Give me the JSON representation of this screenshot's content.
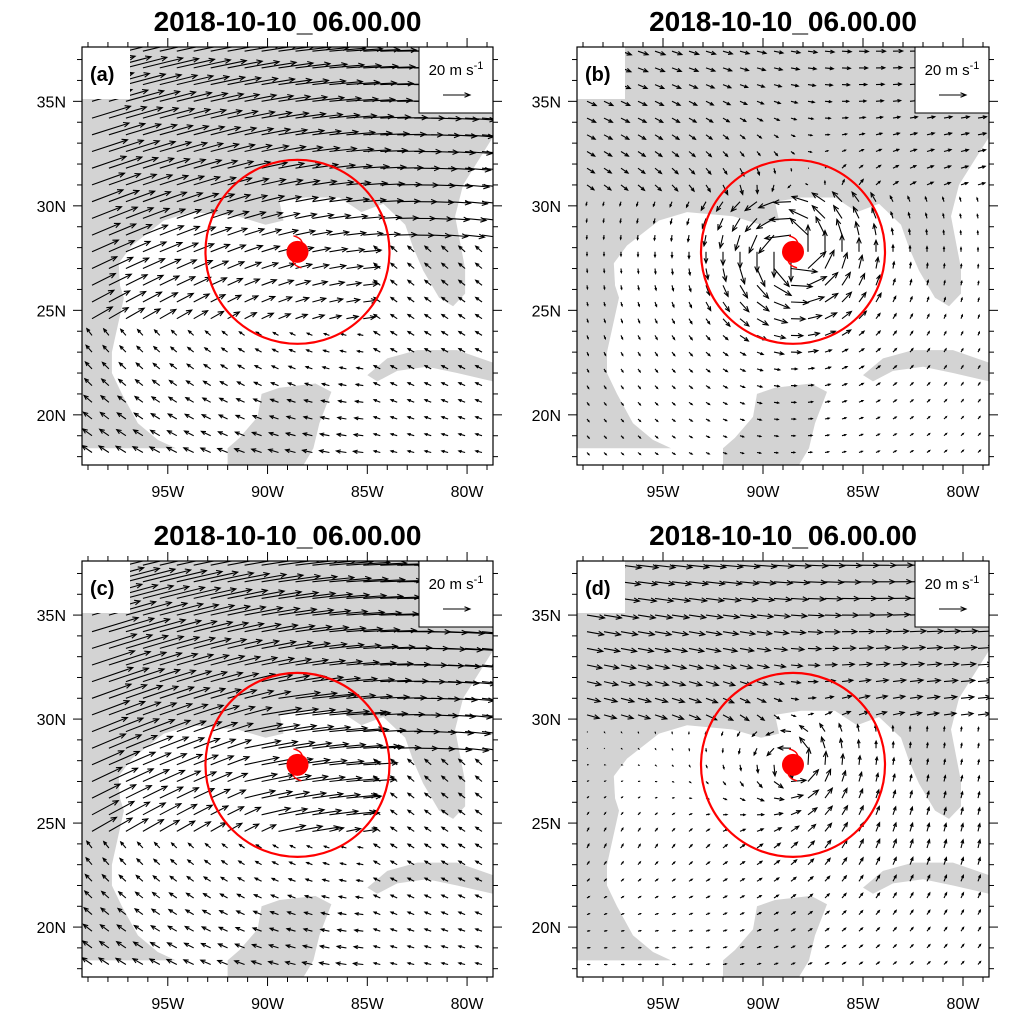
{
  "panels": [
    {
      "id": "a",
      "title": "2018-10-10_06.00.00",
      "label": "(a)",
      "ref_label": "20 m s",
      "ref_exp": "-1",
      "pattern": "sw-flow"
    },
    {
      "id": "b",
      "title": "2018-10-10_06.00.00",
      "label": "(b)",
      "ref_label": "20 m s",
      "ref_exp": "-1",
      "pattern": "cyclone"
    },
    {
      "id": "c",
      "title": "2018-10-10_06.00.00",
      "label": "(c)",
      "ref_label": "20 m s",
      "ref_exp": "-1",
      "pattern": "sw-flow-strong"
    },
    {
      "id": "d",
      "title": "2018-10-10_06.00.00",
      "label": "(d)",
      "ref_label": "20 m s",
      "ref_exp": "-1",
      "pattern": "weak"
    }
  ],
  "axes": {
    "x_ticks": [
      {
        "value": -95,
        "label": "95W"
      },
      {
        "value": -90,
        "label": "90W"
      },
      {
        "value": -85,
        "label": "85W"
      },
      {
        "value": -80,
        "label": "80W"
      }
    ],
    "y_ticks": [
      {
        "value": 20,
        "label": "20N"
      },
      {
        "value": 25,
        "label": "25N"
      },
      {
        "value": 30,
        "label": "30N"
      },
      {
        "value": 35,
        "label": "35N"
      }
    ],
    "xlim": [
      -99.3,
      -78.7
    ],
    "ylim": [
      17.6,
      37.6
    ]
  },
  "chart_data": {
    "type": "vector-field",
    "reference_vector_speed_m_s": 20,
    "storm_center": {
      "lon": -88.5,
      "lat": 27.8
    },
    "radius_circle_center": {
      "lon": -88.5,
      "lat": 27.8
    },
    "colors": {
      "land": "#d3d3d3",
      "ocean": "#ffffff",
      "circle": "#ff0000",
      "storm": "#ff0000",
      "vector": "#000000"
    }
  }
}
